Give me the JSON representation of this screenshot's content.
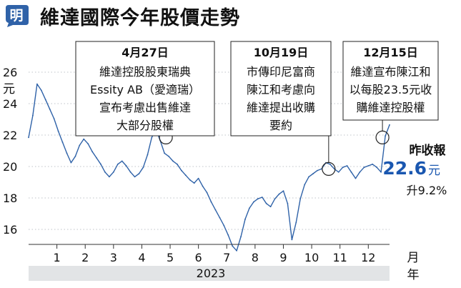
{
  "header": {
    "badge_char": "明",
    "title": "維達國際今年股價走勢"
  },
  "colors": {
    "line": "#2f62a8",
    "badge": "#2f62a8",
    "highlight": "#1a57b0",
    "year_band": "#e2e4e6",
    "grid": "#bfc3c8"
  },
  "annotations": [
    {
      "date": "4月27日",
      "lines": [
        "維達控股股東瑞典",
        "Essity AB（愛適瑞）",
        "宣布考慮出售維達",
        "大部分股權"
      ],
      "point": {
        "month": 4.85,
        "value": 21.8
      }
    },
    {
      "date": "10月19日",
      "lines": [
        "市傳印尼富商",
        "陳江和考慮向",
        "維達提出收購",
        "要約"
      ],
      "point": {
        "month": 10.6,
        "value": 19.8
      }
    },
    {
      "date": "12月15日",
      "lines": [
        "維達宣布陳江和",
        "以每股23.5元收",
        "購維達控股權"
      ],
      "point": {
        "month": 12.5,
        "value": 21.8
      }
    }
  ],
  "summary": {
    "label": "昨收報",
    "value": "22.6",
    "unit": "元",
    "change": "升9.2%"
  },
  "chart_data": {
    "type": "line",
    "title": "維達國際今年股價走勢",
    "xlabel": "月",
    "xlabel2": "年",
    "ylabel": "元",
    "year_label": "2023",
    "ylim": [
      15,
      26
    ],
    "yticks": [
      16,
      18,
      20,
      22,
      24,
      26
    ],
    "xticks": [
      {
        "month": 1,
        "label": "1"
      },
      {
        "month": 2,
        "label": "2"
      },
      {
        "month": 3,
        "label": "3"
      },
      {
        "month": 4,
        "label": "4"
      },
      {
        "month": 5,
        "label": "5"
      },
      {
        "month": 6,
        "label": "6"
      },
      {
        "month": 7,
        "label": "7"
      },
      {
        "month": 8,
        "label": "8"
      },
      {
        "month": 9,
        "label": "9"
      },
      {
        "month": 10,
        "label": "10"
      },
      {
        "month": 11,
        "label": "11"
      },
      {
        "month": 12,
        "label": "12"
      }
    ],
    "grid": true,
    "series": [
      {
        "x": [
          0.0,
          0.15,
          0.3,
          0.45,
          0.6,
          0.75,
          0.9,
          1.05,
          1.2,
          1.35,
          1.5,
          1.65,
          1.8,
          1.95,
          2.1,
          2.25,
          2.4,
          2.55,
          2.7,
          2.85,
          3.0,
          3.15,
          3.3,
          3.45,
          3.6,
          3.75,
          3.9,
          4.05,
          4.2,
          4.35,
          4.5,
          4.65,
          4.8,
          4.95,
          5.1,
          5.25,
          5.4,
          5.55,
          5.7,
          5.85,
          6.0,
          6.15,
          6.3,
          6.45,
          6.6,
          6.75,
          6.9,
          7.05,
          7.2,
          7.35,
          7.5,
          7.65,
          7.8,
          7.95,
          8.1,
          8.25,
          8.4,
          8.55,
          8.7,
          8.85,
          9.0,
          9.15,
          9.3,
          9.45,
          9.6,
          9.75,
          9.9,
          10.05,
          10.2,
          10.35,
          10.5,
          10.65,
          10.8,
          10.95,
          11.1,
          11.25,
          11.4,
          11.55,
          11.7,
          11.85,
          12.0,
          12.15,
          12.3,
          12.45,
          12.6,
          12.75
        ],
        "values": [
          21.8,
          23.2,
          25.2,
          24.8,
          24.2,
          23.6,
          23.0,
          22.2,
          21.5,
          20.8,
          20.2,
          20.6,
          21.3,
          21.7,
          21.4,
          20.9,
          20.5,
          20.1,
          19.6,
          19.3,
          19.6,
          20.1,
          20.3,
          20.0,
          19.6,
          19.3,
          19.5,
          19.9,
          20.7,
          21.8,
          22.3,
          21.6,
          20.8,
          20.6,
          20.3,
          20.1,
          19.7,
          19.4,
          19.1,
          18.9,
          19.2,
          18.7,
          18.3,
          17.7,
          17.2,
          16.7,
          16.2,
          15.6,
          14.9,
          14.6,
          15.5,
          16.6,
          17.3,
          17.7,
          17.9,
          18.0,
          17.6,
          17.4,
          17.9,
          18.2,
          18.4,
          17.6,
          15.3,
          16.4,
          17.9,
          18.8,
          19.3,
          19.5,
          19.7,
          19.8,
          20.2,
          20.1,
          19.8,
          19.6,
          19.9,
          20.0,
          19.6,
          19.2,
          19.6,
          19.9,
          20.0,
          20.1,
          19.9,
          19.6,
          21.9,
          22.6
        ]
      }
    ]
  }
}
